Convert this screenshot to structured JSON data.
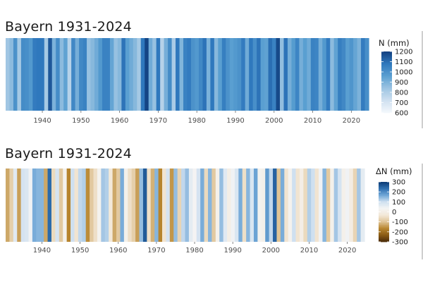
{
  "chart_data": [
    {
      "type": "heatmap",
      "title": "Bayern 1931-2024",
      "xlabel": "",
      "ylabel": "",
      "x_range": [
        1931,
        2024
      ],
      "xticks": [
        1940,
        1950,
        1960,
        1970,
        1980,
        1990,
        2000,
        2010,
        2020
      ],
      "legend": {
        "title": "N (mm)",
        "ticks": [
          600,
          700,
          800,
          900,
          1000,
          1100,
          1200
        ],
        "range": [
          600,
          1200
        ],
        "colors": [
          "#f4f8fc",
          "#cfe0f0",
          "#9dc4e2",
          "#5a9fd1",
          "#2f78bd",
          "#123f7f"
        ],
        "placement": "right"
      },
      "values": [
        830,
        870,
        1000,
        820,
        1020,
        1010,
        980,
        1070,
        1080,
        1080,
        820,
        1150,
        900,
        1020,
        870,
        950,
        780,
        1030,
        910,
        1030,
        1050,
        850,
        880,
        920,
        980,
        1050,
        1050,
        940,
        850,
        880,
        1090,
        960,
        920,
        880,
        820,
        1080,
        1190,
        920,
        850,
        1080,
        780,
        910,
        1020,
        810,
        1080,
        890,
        1050,
        1070,
        1000,
        980,
        1030,
        1090,
        900,
        1080,
        880,
        960,
        1060,
        1000,
        960,
        980,
        1000,
        1070,
        920,
        1080,
        1010,
        1090,
        960,
        950,
        1100,
        1050,
        1180,
        860,
        1090,
        910,
        970,
        1040,
        910,
        960,
        920,
        1050,
        1040,
        910,
        980,
        1070,
        870,
        950,
        1060,
        1030,
        960,
        990,
        940,
        900,
        1070,
        1010
      ]
    },
    {
      "type": "heatmap",
      "title": "Bayern 1931-2024",
      "xlabel": "",
      "ylabel": "",
      "x_range": [
        1931,
        2024
      ],
      "xticks": [
        1940,
        1950,
        1960,
        1970,
        1980,
        1990,
        2000,
        2010,
        2020
      ],
      "legend": {
        "title": "ΔN (mm)",
        "ticks": [
          300,
          200,
          100,
          0,
          -100,
          -200,
          -300
        ],
        "range": [
          -300,
          300
        ],
        "colors": [
          "#4a2c0a",
          "#8a5a14",
          "#b8862f",
          "#dfc496",
          "#f3e8d8",
          "#f4f4f4",
          "#cfe0f0",
          "#6fa6d6",
          "#2f6fb0",
          "#0b3a73"
        ],
        "placement": "right"
      },
      "values": [
        -130,
        -80,
        70,
        -140,
        90,
        80,
        40,
        160,
        150,
        150,
        -130,
        240,
        -60,
        90,
        -90,
        20,
        -170,
        100,
        -40,
        110,
        120,
        -160,
        -90,
        -50,
        20,
        130,
        120,
        -30,
        -130,
        -90,
        160,
        10,
        -50,
        -80,
        -140,
        140,
        260,
        -50,
        -120,
        150,
        -170,
        -40,
        90,
        -150,
        140,
        -70,
        110,
        140,
        60,
        30,
        90,
        160,
        -60,
        150,
        -90,
        10,
        140,
        70,
        0,
        40,
        80,
        160,
        -50,
        150,
        80,
        170,
        20,
        10,
        180,
        110,
        250,
        -100,
        160,
        -40,
        20,
        100,
        -40,
        0,
        -60,
        120,
        100,
        -40,
        40,
        150,
        -90,
        10,
        130,
        90,
        10,
        40,
        -10,
        -70,
        130,
        60
      ]
    }
  ]
}
